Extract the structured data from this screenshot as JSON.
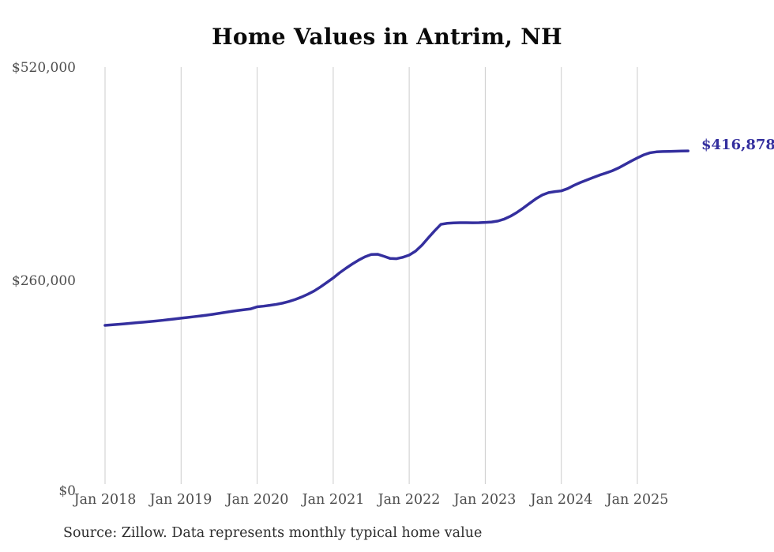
{
  "chart": {
    "title": "Home Values in Antrim, NH",
    "source_note": "Source: Zillow. Data represents monthly typical home value",
    "end_label": "$416,878",
    "line_color": "#342f9e",
    "grid_color": "#cccccc",
    "tick_text_color": "#4d4d4d",
    "title_color": "#0a0a0a"
  },
  "chart_data": {
    "type": "line",
    "title": "Home Values in Antrim, NH",
    "xlabel": "",
    "ylabel": "",
    "ylim": [
      0,
      520000
    ],
    "y_tick_labels": [
      "$520,000",
      "$260,000",
      "$0"
    ],
    "y_tick_values": [
      520000,
      260000,
      0
    ],
    "x_tick_labels": [
      "Jan 2018",
      "Jan 2019",
      "Jan 2020",
      "Jan 2021",
      "Jan 2022",
      "Jan 2023",
      "Jan 2024",
      "Jan 2025"
    ],
    "x_range": [
      "Jan 2018",
      "Sep 2025"
    ],
    "grid": "vertical-gridlines-only",
    "legend_position": "none",
    "end_value": 416878,
    "end_value_label": "$416,878",
    "series": [
      {
        "name": "Monthly typical home value",
        "unit": "USD",
        "start_month": "2018-01",
        "frequency": "monthly",
        "monthly_values": [
          202200,
          202800,
          203400,
          204000,
          204700,
          205400,
          206100,
          206800,
          207500,
          208300,
          209200,
          210100,
          211000,
          211900,
          212800,
          213700,
          214700,
          215800,
          217000,
          218200,
          219400,
          220500,
          221500,
          222500,
          225000,
          225800,
          226800,
          228000,
          229500,
          231500,
          234000,
          237000,
          240500,
          244500,
          249500,
          255000,
          260500,
          266800,
          272400,
          277600,
          282400,
          286500,
          289400,
          289700,
          287200,
          284500,
          284200,
          286000,
          288700,
          293500,
          300800,
          309800,
          318500,
          326500,
          327800,
          328300,
          328500,
          328500,
          328400,
          328500,
          328900,
          329400,
          330600,
          333000,
          336600,
          341200,
          346600,
          352400,
          358000,
          362700,
          365600,
          366800,
          367700,
          370500,
          374500,
          378000,
          381000,
          384000,
          387000,
          389600,
          392300,
          395800,
          400000,
          404300,
          408300,
          412000,
          414600,
          415700,
          416100,
          416300,
          416500,
          416700,
          416878
        ]
      }
    ]
  }
}
